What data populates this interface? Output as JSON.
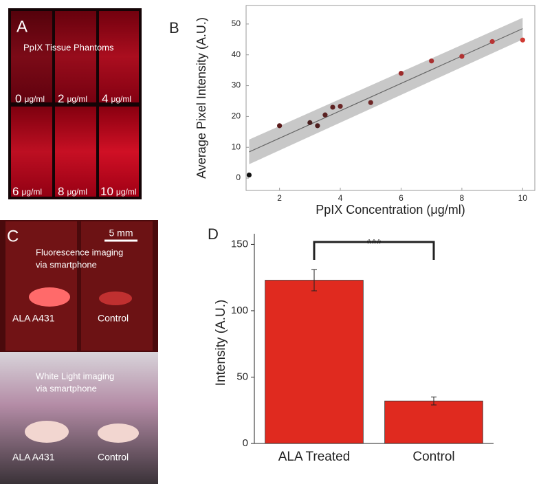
{
  "chart_data": [
    {
      "type": "scatter",
      "panel_letter": "B",
      "x_label": "PpIX Concentration (μg/ml)",
      "y_label": "Average Pixel Intensity (A.U.)",
      "x": [
        1,
        2,
        3,
        3.25,
        3.5,
        3.75,
        4,
        5,
        6,
        7,
        8,
        9,
        10
      ],
      "values": [
        1,
        17,
        18,
        17,
        20.5,
        23,
        23.3,
        24.5,
        34,
        38,
        39.5,
        44.3,
        44.8
      ],
      "colors": [
        "#111111",
        "#5a1a1a",
        "#4a2020",
        "#4d1f1f",
        "#5a2222",
        "#5e2222",
        "#6a2626",
        "#6e2828",
        "#9c2a2a",
        "#a83030",
        "#b03232",
        "#b83434",
        "#d03a32"
      ],
      "fit": {
        "x": [
          1,
          10
        ],
        "values": [
          8.5,
          48.5
        ],
        "lower": [
          4.5,
          45
        ],
        "upper": [
          12.5,
          52
        ],
        "color": "#666666",
        "band_color": "#c8c8c8"
      },
      "xlim": [
        0.9,
        10.4
      ],
      "ylim": [
        -4,
        56
      ],
      "xticks": [
        2,
        4,
        6,
        8,
        10
      ],
      "yticks": [
        0,
        10,
        20,
        30,
        40,
        50
      ],
      "grid": false
    },
    {
      "type": "bar",
      "panel_letter": "D",
      "y_label": "Intensity (A.U.)",
      "categories": [
        "ALA Treated",
        "Control"
      ],
      "values": [
        123,
        32
      ],
      "errors": [
        8,
        3
      ],
      "color": "#e02a1f",
      "ylim": [
        0,
        158
      ],
      "yticks": [
        0,
        50,
        100,
        150
      ],
      "grid": false,
      "annotation": "***"
    }
  ],
  "panel_a": {
    "letter": "A",
    "title": "PpIX Tissue Phantoms",
    "labels": [
      {
        "number": "0",
        "unit": "μg/ml"
      },
      {
        "number": "2",
        "unit": "μg/ml"
      },
      {
        "number": "4",
        "unit": "μg/ml"
      },
      {
        "number": "6",
        "unit": "μg/ml"
      },
      {
        "number": "8",
        "unit": "μg/ml"
      },
      {
        "number": "10",
        "unit": "μg/ml"
      }
    ]
  },
  "panel_c": {
    "letter": "C",
    "scale_bar": "5 mm",
    "fluorescence_caption": [
      "Fluorescence imaging",
      "via smartphone"
    ],
    "white_light_caption": [
      "White Light imaging",
      "via smartphone"
    ],
    "top_labels": [
      "ALA  A431",
      "Control"
    ],
    "bottom_labels": [
      "ALA  A431",
      "Control"
    ]
  }
}
